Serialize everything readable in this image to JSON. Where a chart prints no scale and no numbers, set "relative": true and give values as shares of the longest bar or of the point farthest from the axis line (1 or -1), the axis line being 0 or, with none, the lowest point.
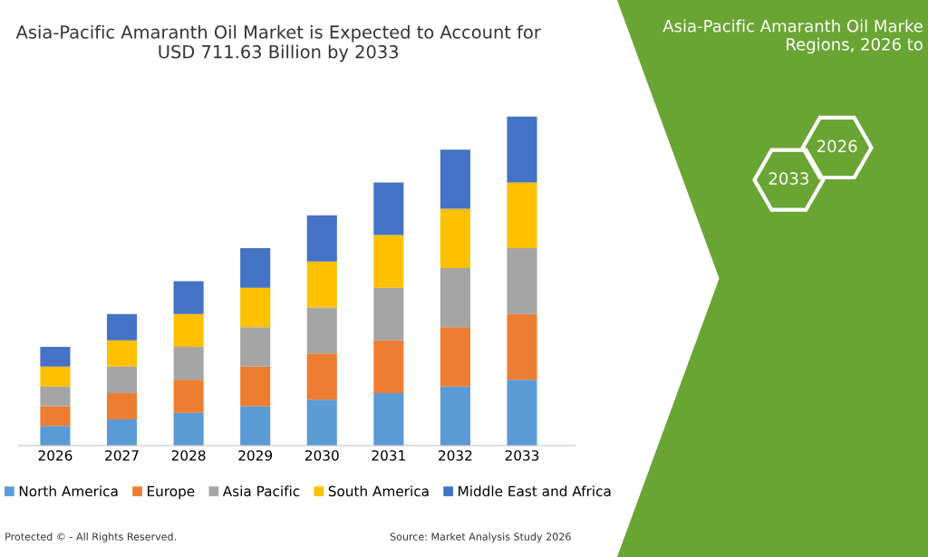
{
  "chart_data": {
    "type": "bar",
    "title": "Asia-Pacific Amaranth Oil Market is Expected to Account for\nUSD 711.63 Billion by 2033",
    "categories": [
      "2026",
      "2027",
      "2028",
      "2029",
      "2030",
      "2031",
      "2032",
      "2033"
    ],
    "stacked": true,
    "relative": true,
    "legend": "bottom",
    "tick_labels": "x",
    "grid": false,
    "series": [
      {
        "name": "North America",
        "color": "#5b9bd5",
        "values": [
          0.06,
          0.08,
          0.1,
          0.12,
          0.14,
          0.16,
          0.18,
          0.2
        ]
      },
      {
        "name": "Europe",
        "color": "#ed7d31",
        "values": [
          0.06,
          0.08,
          0.1,
          0.12,
          0.14,
          0.16,
          0.18,
          0.2
        ]
      },
      {
        "name": "Asia Pacific",
        "color": "#a5a5a5",
        "values": [
          0.06,
          0.08,
          0.1,
          0.12,
          0.14,
          0.16,
          0.18,
          0.2
        ]
      },
      {
        "name": "South America",
        "color": "#ffc000",
        "values": [
          0.06,
          0.08,
          0.1,
          0.12,
          0.14,
          0.16,
          0.18,
          0.2
        ]
      },
      {
        "name": "Middle East and Africa",
        "color": "#4472c4",
        "values": [
          0.06,
          0.08,
          0.1,
          0.12,
          0.14,
          0.16,
          0.18,
          0.2
        ]
      }
    ],
    "annotations": [
      "Protected © - All Rights Reserved.",
      "Source: Market Analysis Study 2026",
      "Asia-Pacific Amaranth Oil Marke\nRegions, 2026 to",
      "2026",
      "2033"
    ]
  }
}
